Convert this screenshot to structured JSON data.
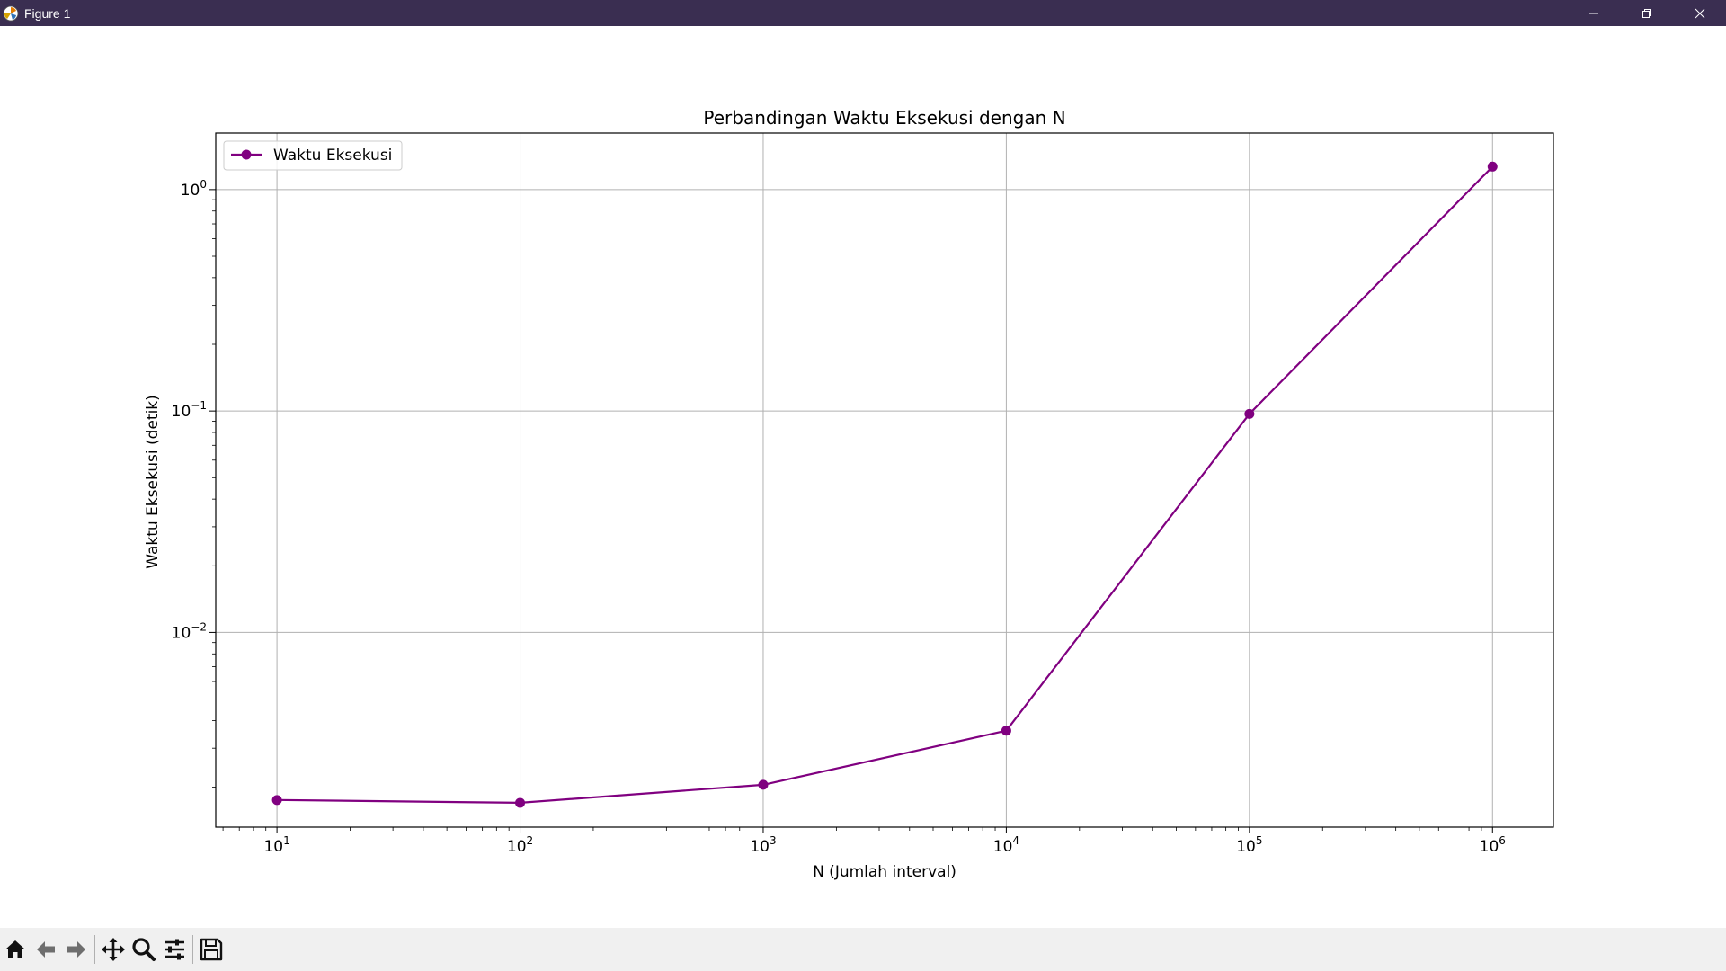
{
  "window": {
    "title": "Figure 1",
    "titlebar_color": "#3a2e51"
  },
  "toolbar": {
    "buttons": [
      "home-icon",
      "back-arrow-icon",
      "forward-arrow-icon",
      "pan-icon",
      "zoom-icon",
      "configure-subplots-icon",
      "save-icon"
    ]
  },
  "chart_data": {
    "type": "line",
    "title": "Perbandingan Waktu Eksekusi dengan N",
    "xlabel": "N (Jumlah interval)",
    "ylabel": "Waktu Eksekusi (detik)",
    "xscale": "log",
    "yscale": "log",
    "xlim": [
      5.6,
      1780000
    ],
    "ylim": [
      0.00132,
      1.8
    ],
    "x_ticks": [
      10,
      100,
      1000,
      10000,
      100000,
      1000000
    ],
    "x_tick_labels": [
      {
        "base": "10",
        "exp": "1"
      },
      {
        "base": "10",
        "exp": "2"
      },
      {
        "base": "10",
        "exp": "3"
      },
      {
        "base": "10",
        "exp": "4"
      },
      {
        "base": "10",
        "exp": "5"
      },
      {
        "base": "10",
        "exp": "6"
      }
    ],
    "y_ticks": [
      0.01,
      0.1,
      1
    ],
    "y_tick_labels": [
      {
        "base": "10",
        "exp": "−2"
      },
      {
        "base": "10",
        "exp": "−1"
      },
      {
        "base": "10",
        "exp": "0"
      }
    ],
    "grid": true,
    "legend_position": "upper-left",
    "series": [
      {
        "name": "Waktu Eksekusi",
        "color": "#800080",
        "marker": "circle",
        "x": [
          10,
          100,
          1000,
          10000,
          100000,
          1000000
        ],
        "y": [
          0.00175,
          0.0017,
          0.00205,
          0.0036,
          0.097,
          1.27
        ]
      }
    ]
  }
}
